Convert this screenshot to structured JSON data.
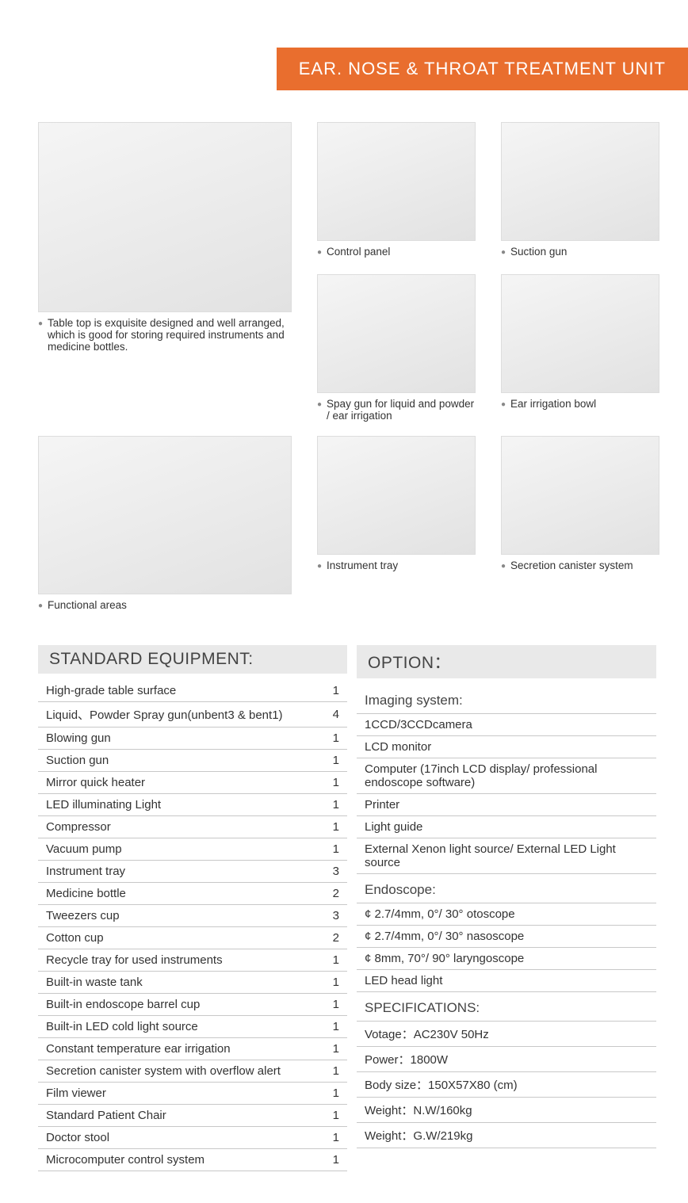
{
  "header": {
    "title": "EAR. NOSE & THROAT TREATMENT UNIT",
    "title_bg": "#e96e2e",
    "title_color": "#ffffff"
  },
  "gallery": {
    "main": {
      "caption": "Table top is exquisite designed and well arranged, which is good for storing required instruments and medicine bottles."
    },
    "functional": {
      "caption": "Functional areas"
    },
    "control": {
      "caption": "Control panel"
    },
    "spray": {
      "caption": "Spay gun for liquid and powder / ear irrigation"
    },
    "instrument": {
      "caption": "Instrument tray"
    },
    "suction": {
      "caption": "Suction gun"
    },
    "bowl": {
      "caption": "Ear irrigation bowl"
    },
    "canister": {
      "caption": "Secretion canister system"
    }
  },
  "standard": {
    "heading": "STANDARD EQUIPMENT:",
    "rows": [
      {
        "name": "High-grade table surface",
        "qty": "1"
      },
      {
        "name": "Liquid、Powder Spray gun(unbent3 & bent1)",
        "qty": "4"
      },
      {
        "name": "Blowing gun",
        "qty": "1"
      },
      {
        "name": "Suction gun",
        "qty": "1"
      },
      {
        "name": "Mirror quick heater",
        "qty": "1"
      },
      {
        "name": "LED illuminating Light",
        "qty": "1"
      },
      {
        "name": "Compressor",
        "qty": "1"
      },
      {
        "name": "Vacuum pump",
        "qty": "1"
      },
      {
        "name": "Instrument tray",
        "qty": "3"
      },
      {
        "name": "Medicine bottle",
        "qty": "2"
      },
      {
        "name": "Tweezers cup",
        "qty": "3"
      },
      {
        "name": "Cotton cup",
        "qty": "2"
      },
      {
        "name": "Recycle tray for used instruments",
        "qty": "1"
      },
      {
        "name": "Built-in waste tank",
        "qty": "1"
      },
      {
        "name": "Built-in endoscope barrel cup",
        "qty": "1"
      },
      {
        "name": "Built-in LED cold light source",
        "qty": "1"
      },
      {
        "name": "Constant temperature ear irrigation",
        "qty": "1"
      },
      {
        "name": "Secretion canister system with overflow alert",
        "qty": "1"
      },
      {
        "name": "Film viewer",
        "qty": "1"
      },
      {
        "name": "Standard Patient Chair",
        "qty": "1"
      },
      {
        "name": "Doctor stool",
        "qty": "1"
      },
      {
        "name": "Microcomputer control system",
        "qty": "1"
      }
    ]
  },
  "option": {
    "heading": "OPTION：",
    "sections": [
      {
        "title": "Imaging system:",
        "items": [
          "1CCD/3CCDcamera",
          "LCD monitor",
          "Computer (17inch LCD display/ professional endoscope software)",
          "Printer",
          "Light guide",
          "External Xenon light source/ External LED Light source"
        ]
      },
      {
        "title": "Endoscope:",
        "items": [
          "¢ 2.7/4mm, 0°/ 30° otoscope",
          "¢ 2.7/4mm, 0°/ 30° nasoscope",
          "¢ 8mm, 70°/ 90° laryngoscope",
          "LED head light"
        ]
      },
      {
        "title": "SPECIFICATIONS:",
        "items": [
          "Votage：AC230V 50Hz",
          "Power：1800W",
          "Body size：150X57X80 (cm)",
          "Weight：N.W/160kg",
          "Weight：G.W/219kg"
        ]
      }
    ]
  },
  "style": {
    "header_bg": "#e9e9e9",
    "border_color": "#c8c8c8",
    "text_color": "#333333",
    "bullet_color": "#888888",
    "placeholder_bg": "#ececec"
  }
}
